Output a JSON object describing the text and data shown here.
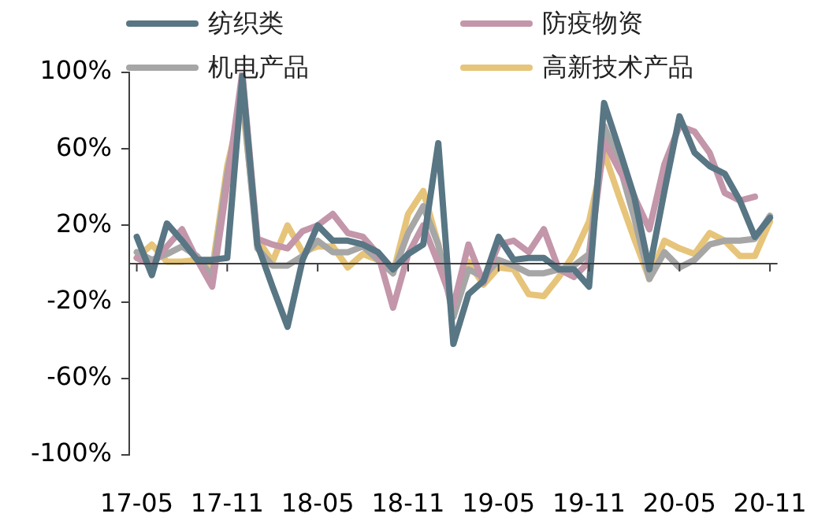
{
  "chart_data": {
    "type": "line",
    "categories": [
      "17-05",
      null,
      null,
      null,
      null,
      null,
      "17-11",
      null,
      null,
      null,
      null,
      null,
      "18-05",
      null,
      null,
      null,
      null,
      null,
      "18-11",
      null,
      null,
      null,
      null,
      null,
      "19-05",
      null,
      null,
      null,
      null,
      null,
      "19-11",
      null,
      null,
      null,
      null,
      null,
      "20-05",
      null,
      null,
      null,
      null,
      null,
      "20-11"
    ],
    "series": [
      {
        "name": "纺织类",
        "color": "#587684",
        "values": [
          14,
          -6,
          21,
          12,
          2,
          2,
          3,
          98,
          10,
          -12,
          -33,
          2,
          20,
          12,
          12,
          10,
          6,
          -3,
          5,
          10,
          63,
          -42,
          -16,
          -9,
          14,
          2,
          3,
          3,
          -3,
          -3,
          -12,
          84,
          60,
          35,
          -3,
          38,
          77,
          58,
          51,
          47,
          33,
          14,
          24
        ]
      },
      {
        "name": "防疫物资",
        "color": "#c396aa",
        "values": [
          3,
          -1,
          9,
          18,
          2,
          -12,
          42,
          100,
          13,
          10,
          8,
          17,
          20,
          26,
          16,
          14,
          5,
          -23,
          5,
          20,
          0,
          -22,
          10,
          -10,
          10,
          12,
          6,
          18,
          -3,
          -7,
          1,
          64,
          49,
          35,
          18,
          52,
          72,
          69,
          58,
          37,
          33,
          35,
          null
        ]
      },
      {
        "name": "机电产品",
        "color": "#a6a6a6",
        "values": [
          6,
          2,
          5,
          9,
          4,
          -7,
          47,
          89,
          8,
          -1,
          -1,
          4,
          12,
          6,
          6,
          9,
          2,
          -5,
          16,
          30,
          10,
          -28,
          -3,
          -7,
          2,
          -1,
          -5,
          -5,
          -3,
          -1,
          5,
          72,
          52,
          24,
          -8,
          6,
          -2,
          2,
          10,
          12,
          12,
          13,
          25
        ]
      },
      {
        "name": "高新技术产品",
        "color": "#e6c47a",
        "values": [
          3,
          10,
          1,
          1,
          2,
          -3,
          51,
          85,
          13,
          1,
          20,
          6,
          9,
          9,
          -2,
          5,
          2,
          -5,
          26,
          38,
          10,
          -27,
          1,
          -11,
          -2,
          -3,
          -16,
          -17,
          -7,
          5,
          22,
          58,
          35,
          13,
          -8,
          12,
          8,
          5,
          16,
          12,
          4,
          4,
          22
        ]
      }
    ],
    "ylim": [
      -100,
      100
    ],
    "yticks": [
      {
        "value": -100,
        "label": "-100%"
      },
      {
        "value": -60,
        "label": "-60%"
      },
      {
        "value": -20,
        "label": "-20%"
      },
      {
        "value": 20,
        "label": "20%"
      },
      {
        "value": 60,
        "label": "60%"
      },
      {
        "value": 100,
        "label": "100%"
      }
    ],
    "legend": "top",
    "marker": "none",
    "grid": false
  }
}
